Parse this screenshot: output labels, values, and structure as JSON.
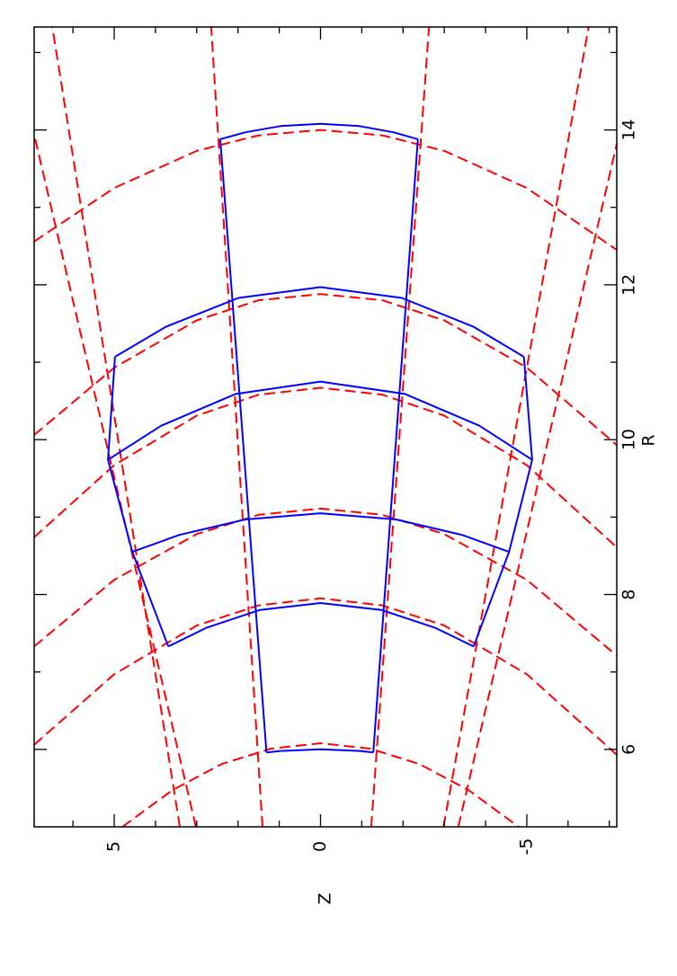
{
  "chart_data": {
    "type": "line",
    "xlabel": "R",
    "ylabel": "Z",
    "xlim": [
      5,
      15.33
    ],
    "ylim": [
      -7.18,
      6.94
    ],
    "xticks": [
      6,
      8,
      10,
      12,
      14
    ],
    "yticks": [
      -5,
      0,
      5
    ],
    "xminorticks": [
      7,
      9,
      11,
      13,
      15
    ],
    "yminorticks": [
      -7,
      -6,
      -4,
      -3,
      -2,
      -1,
      1,
      2,
      3,
      4,
      6
    ],
    "series": [
      {
        "color": "#ff0000",
        "dashed": true,
        "x": [
          5.0,
          5.47,
          5.81,
          6.01,
          6.08,
          6.01,
          5.81,
          5.47,
          5.0
        ],
        "values": [
          4.8,
          3.6,
          2.4,
          1.2,
          0,
          -1.2,
          -2.4,
          -3.6,
          -4.8
        ]
      },
      {
        "color": "#ff0000",
        "dashed": true,
        "x": [
          6.06,
          6.97,
          7.6,
          7.86,
          7.95,
          7.86,
          7.6,
          6.97,
          5.93
        ],
        "values": [
          6.94,
          5,
          3,
          1.5,
          0,
          -1.5,
          -3,
          -5,
          -7.18
        ]
      },
      {
        "color": "#ff0000",
        "dashed": true,
        "x": [
          7.33,
          8.19,
          8.78,
          9.03,
          9.11,
          9.03,
          8.78,
          8.19,
          7.21
        ],
        "values": [
          6.94,
          5,
          3,
          1.5,
          0,
          -1.5,
          -3,
          -5,
          -7.18
        ]
      },
      {
        "color": "#ff0000",
        "dashed": true,
        "x": [
          8.74,
          9.67,
          10.31,
          10.58,
          10.67,
          10.58,
          10.31,
          9.67,
          8.61
        ],
        "values": [
          6.94,
          5,
          3,
          1.5,
          0,
          -1.5,
          -3,
          -5,
          -7.18
        ]
      },
      {
        "color": "#ff0000",
        "dashed": true,
        "x": [
          10.06,
          10.93,
          11.54,
          11.8,
          11.88,
          11.8,
          11.54,
          10.93,
          9.93
        ],
        "values": [
          6.94,
          5,
          3,
          1.5,
          0,
          -1.5,
          -3,
          -5,
          -7.18
        ]
      },
      {
        "color": "#ff0000",
        "dashed": true,
        "x": [
          12.56,
          13.25,
          13.73,
          13.93,
          14.0,
          13.93,
          13.73,
          13.25,
          12.45
        ],
        "values": [
          6.94,
          5,
          3,
          1.5,
          0,
          -1.5,
          -3,
          -5,
          -7.18
        ]
      },
      {
        "color": "#ff0000",
        "dashed": true,
        "x": [
          5,
          15.33
        ],
        "values": [
          1.405,
          2.65
        ]
      },
      {
        "color": "#ff0000",
        "dashed": true,
        "x": [
          5,
          15.33
        ],
        "values": [
          -1.23,
          -2.63
        ]
      },
      {
        "color": "#ff0000",
        "dashed": true,
        "x": [
          5,
          15.33
        ],
        "values": [
          3.41,
          6.5
        ]
      },
      {
        "color": "#ff0000",
        "dashed": true,
        "x": [
          5,
          13.94
        ],
        "values": [
          3.02,
          6.94
        ]
      },
      {
        "color": "#ff0000",
        "dashed": true,
        "x": [
          5,
          15.33
        ],
        "values": [
          -2.98,
          -6.5
        ]
      },
      {
        "color": "#ff0000",
        "dashed": true,
        "x": [
          5,
          13.82
        ],
        "values": [
          -3.34,
          -7.18
        ]
      },
      {
        "color": "#0000ff",
        "dashed": false,
        "x": [
          5.96,
          5.98,
          5.99,
          6.0,
          5.99,
          5.98,
          5.96
        ],
        "values": [
          1.31,
          0.98,
          0.52,
          0,
          -0.51,
          -0.96,
          -1.28
        ]
      },
      {
        "color": "#0000ff",
        "dashed": false,
        "x": [
          7.33,
          7.57,
          7.8,
          7.89,
          7.8,
          7.57,
          7.33
        ],
        "values": [
          3.69,
          2.77,
          1.48,
          0,
          -1.48,
          -2.78,
          -3.71
        ]
      },
      {
        "color": "#0000ff",
        "dashed": false,
        "x": [
          8.55,
          8.77,
          8.97,
          9.05,
          8.97,
          8.77,
          8.55
        ],
        "values": [
          4.56,
          3.42,
          1.82,
          0,
          -1.83,
          -3.43,
          -4.57
        ]
      },
      {
        "color": "#0000ff",
        "dashed": false,
        "x": [
          9.74,
          10.18,
          10.59,
          10.75,
          10.59,
          10.18,
          9.74
        ],
        "values": [
          5.15,
          3.86,
          2.06,
          0,
          -2.05,
          -3.85,
          -5.13
        ]
      },
      {
        "color": "#0000ff",
        "dashed": false,
        "x": [
          11.07,
          11.46,
          11.83,
          11.97,
          11.83,
          11.46,
          11.07
        ],
        "values": [
          4.98,
          3.74,
          1.99,
          0,
          -1.97,
          -3.7,
          -4.93
        ]
      },
      {
        "color": "#0000ff",
        "dashed": false,
        "x": [
          13.88,
          13.97,
          14.05,
          14.08,
          14.05,
          13.97,
          13.88
        ],
        "values": [
          2.43,
          1.82,
          0.97,
          0,
          -0.94,
          -1.77,
          -2.36
        ]
      },
      {
        "color": "#0000ff",
        "dashed": false,
        "x": [
          5.96,
          13.88
        ],
        "values": [
          1.31,
          2.43
        ]
      },
      {
        "color": "#0000ff",
        "dashed": false,
        "x": [
          5.96,
          13.88
        ],
        "values": [
          -1.28,
          -2.36
        ]
      },
      {
        "color": "#0000ff",
        "dashed": false,
        "x": [
          7.33,
          8.55,
          9.74,
          11.07
        ],
        "values": [
          3.69,
          4.56,
          5.15,
          4.98
        ]
      },
      {
        "color": "#0000ff",
        "dashed": false,
        "x": [
          7.33,
          8.55,
          9.74,
          11.07
        ],
        "values": [
          -3.71,
          -4.57,
          -5.13,
          -4.93
        ]
      }
    ]
  }
}
